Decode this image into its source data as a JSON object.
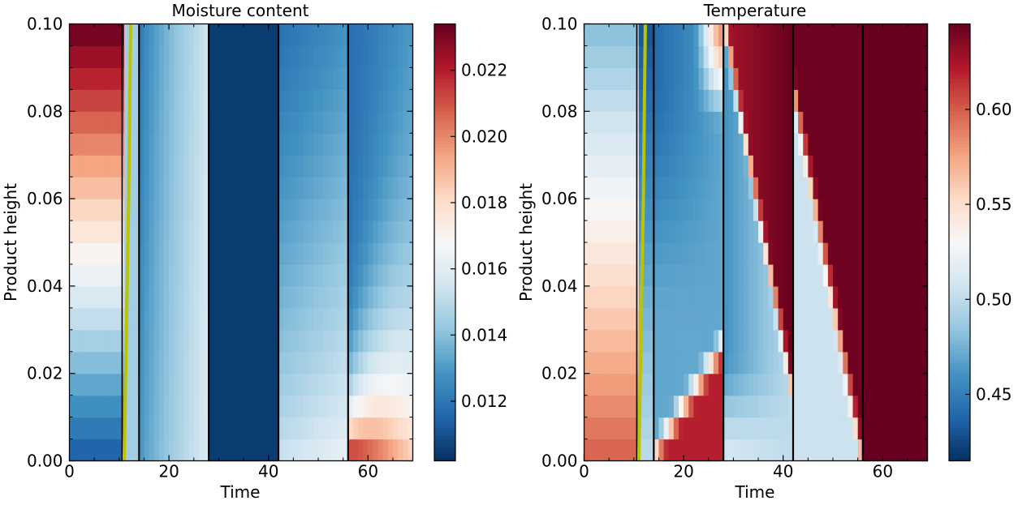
{
  "chart_data": [
    {
      "type": "heatmap",
      "title": "Moisture content",
      "xlabel": "Time",
      "ylabel": "Product height",
      "xlim": [
        0,
        69
      ],
      "ylim": [
        0,
        0.1
      ],
      "xticks": [
        0,
        20,
        40,
        60
      ],
      "xtick_labels": [
        "0",
        "20",
        "40",
        "60"
      ],
      "yticks": [
        0,
        0.02,
        0.04,
        0.06,
        0.08,
        0.1
      ],
      "ytick_labels": [
        "0.00",
        "0.02",
        "0.04",
        "0.06",
        "0.08",
        "0.10"
      ],
      "colormap": "RdBu_r",
      "color_range": [
        0.0102,
        0.0234
      ],
      "colorbar_ticks": [
        0.012,
        0.014,
        0.016,
        0.018,
        0.02,
        0.022
      ],
      "colorbar_tick_labels": [
        "0.012",
        "0.014",
        "0.016",
        "0.018",
        "0.020",
        "0.022"
      ],
      "n_height_cells": 20,
      "phase_boundaries": [
        14,
        28,
        42,
        56
      ],
      "front_line": {
        "color": "#bcc400",
        "points": [
          [
            11.0,
            0.0
          ],
          [
            11.3,
            0.02
          ],
          [
            11.6,
            0.04
          ],
          [
            11.9,
            0.06
          ],
          [
            12.1,
            0.08
          ],
          [
            12.3,
            0.1
          ]
        ]
      },
      "phases": [
        {
          "t_start": 0,
          "t_end": 11.1,
          "description": "initial gradient",
          "bottom": 0.0112,
          "top": 0.0234
        },
        {
          "t_start": 11.1,
          "t_end": 14,
          "value": 0.0145
        },
        {
          "t_start": 14,
          "t_end": 28,
          "drying_from": [
            0.0128,
            0.012
          ],
          "drying_to": [
            0.0158,
            0.0155
          ]
        },
        {
          "t_start": 28,
          "t_end": 42,
          "value": 0.0105
        },
        {
          "t_start": 42,
          "t_end": 56,
          "bottom_from": 0.0155,
          "bottom_to": 0.0165,
          "top_from": 0.0118,
          "top_to": 0.0128
        },
        {
          "t_start": 56,
          "t_end": 69,
          "bottom_from": 0.0232,
          "bottom_to": 0.0185,
          "top_from": 0.0118,
          "top_to": 0.0125
        }
      ]
    },
    {
      "type": "heatmap",
      "title": "Temperature",
      "xlabel": "Time",
      "ylabel": "Product height",
      "xlim": [
        0,
        69
      ],
      "ylim": [
        0,
        0.1
      ],
      "xticks": [
        0,
        20,
        40,
        60
      ],
      "xtick_labels": [
        "0",
        "20",
        "40",
        "60"
      ],
      "yticks": [
        0,
        0.02,
        0.04,
        0.06,
        0.08,
        0.1
      ],
      "ytick_labels": [
        "0.00",
        "0.02",
        "0.04",
        "0.06",
        "0.08",
        "0.10"
      ],
      "colormap": "RdBu_r",
      "color_range": [
        0.415,
        0.645
      ],
      "colorbar_ticks": [
        0.45,
        0.5,
        0.55,
        0.6
      ],
      "colorbar_tick_labels": [
        "0.45",
        "0.50",
        "0.55",
        "0.60"
      ],
      "n_height_cells": 20,
      "phase_boundaries": [
        14,
        28,
        42,
        56
      ],
      "front_line": {
        "color": "#bcc400",
        "points": [
          [
            11.0,
            0.0
          ],
          [
            11.3,
            0.02
          ],
          [
            11.6,
            0.04
          ],
          [
            11.9,
            0.06
          ],
          [
            12.1,
            0.08
          ],
          [
            12.3,
            0.1
          ]
        ]
      },
      "phases": [
        {
          "t_start": 0,
          "t_end": 11.1,
          "description": "initial gradient",
          "bottom": 0.6,
          "top": 0.48
        },
        {
          "t_start": 11.1,
          "t_end": 14,
          "bottom": 0.5,
          "top": 0.43
        },
        {
          "t_start": 14,
          "t_end": 28,
          "description": "heating front from bottom and top"
        },
        {
          "t_start": 28,
          "t_end": 42,
          "description": "hot front moving down from top"
        },
        {
          "t_start": 42,
          "t_end": 56,
          "description": "hot front continues down"
        },
        {
          "t_start": 56,
          "t_end": 69,
          "value": 0.645
        }
      ]
    }
  ]
}
